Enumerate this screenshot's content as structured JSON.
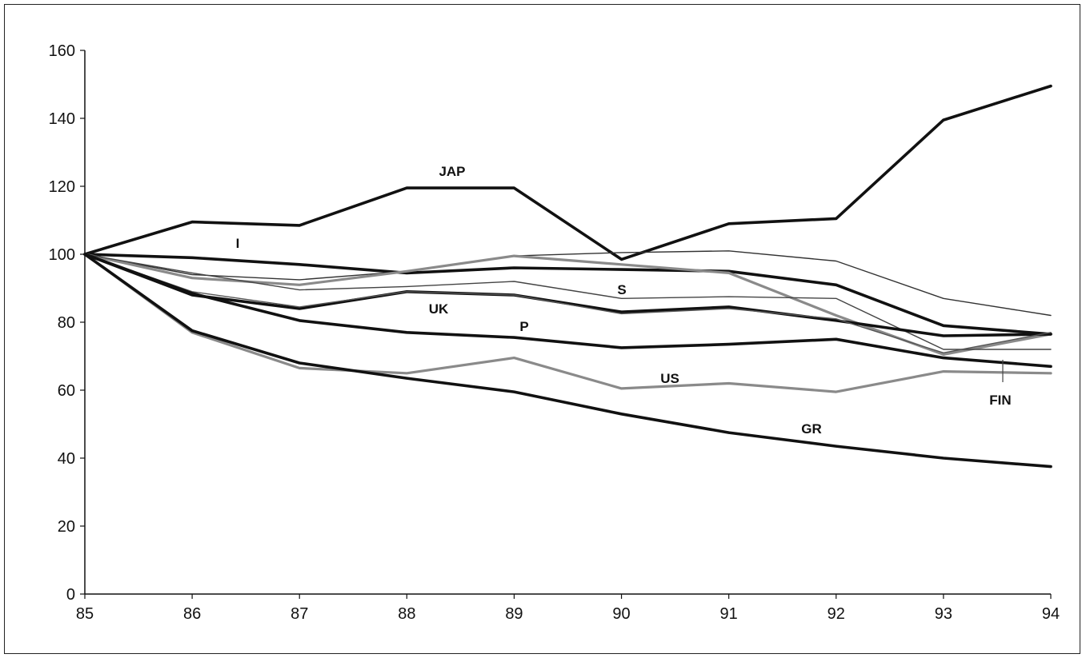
{
  "chart_data": {
    "type": "line",
    "title": "",
    "xlabel": "",
    "ylabel": "",
    "x": [
      "85",
      "86",
      "87",
      "88",
      "89",
      "90",
      "91",
      "92",
      "93",
      "94"
    ],
    "ylim": [
      0,
      160
    ],
    "yticks": [
      "0",
      "20",
      "40",
      "60",
      "80",
      "100",
      "120",
      "140",
      "160"
    ],
    "grid": false,
    "legend": "none",
    "series": [
      {
        "name": "JAP",
        "values": [
          100,
          109.5,
          108.5,
          119.5,
          119.5,
          98.5,
          109,
          110.5,
          139.5,
          149.5
        ],
        "color": "#111111",
        "weight": "heavy"
      },
      {
        "name": "I",
        "values": [
          100,
          99,
          97,
          94.5,
          96,
          95.5,
          95,
          91,
          79,
          76.5
        ],
        "color": "#111111",
        "weight": "heavy"
      },
      {
        "name": "",
        "values": [
          100,
          94,
          92.5,
          95,
          99.5,
          100.5,
          101,
          98,
          87,
          82
        ],
        "color": "#333333",
        "weight": "thin"
      },
      {
        "name": "",
        "values": [
          100,
          93,
          91,
          95,
          99.5,
          97,
          94.5,
          82,
          70.5,
          76.5
        ],
        "color": "#8a8a8a",
        "weight": "medium"
      },
      {
        "name": "S",
        "values": [
          100,
          94.5,
          89.5,
          90.5,
          92,
          87,
          87.5,
          87,
          72,
          72
        ],
        "color": "#444444",
        "weight": "thin"
      },
      {
        "name": "UK",
        "values": [
          100,
          88,
          84,
          89,
          88,
          83,
          84.5,
          80.5,
          76,
          76.5
        ],
        "color": "#111111",
        "weight": "heavy"
      },
      {
        "name": "FIN",
        "values": [
          100,
          89,
          84.5,
          89,
          88,
          82.5,
          84,
          81,
          71,
          77
        ],
        "color": "#555555",
        "weight": "thin"
      },
      {
        "name": "P",
        "values": [
          100,
          88.5,
          80.5,
          77,
          75.5,
          72.5,
          73.5,
          75,
          69.5,
          67
        ],
        "color": "#111111",
        "weight": "heavy"
      },
      {
        "name": "US",
        "values": [
          100,
          77,
          66.5,
          65,
          69.5,
          60.5,
          62,
          59.5,
          65.5,
          65
        ],
        "color": "#8a8a8a",
        "weight": "medium"
      },
      {
        "name": "GR",
        "values": [
          100,
          77.5,
          68,
          63.5,
          59.5,
          53,
          47.5,
          43.5,
          40,
          37.5
        ],
        "color": "#111111",
        "weight": "heavy"
      }
    ],
    "annotations": [
      "JAP",
      "I",
      "S",
      "UK",
      "P",
      "US",
      "FIN",
      "GR"
    ]
  }
}
